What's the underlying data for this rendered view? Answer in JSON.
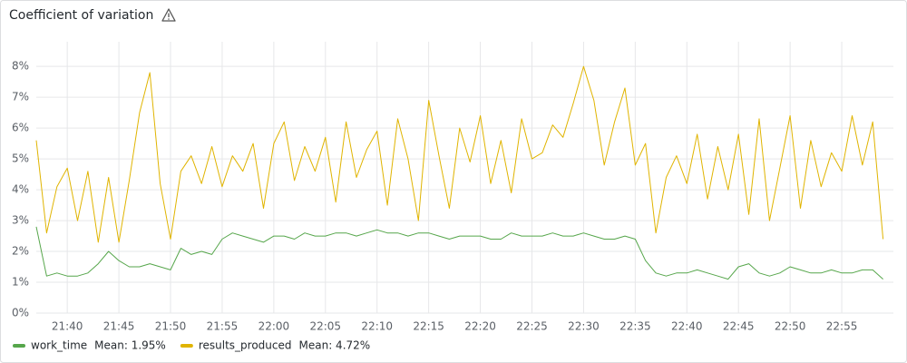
{
  "chart_data": {
    "type": "line",
    "title": "Coefficient of variation",
    "x": [
      "21:37",
      "21:38",
      "21:39",
      "21:40",
      "21:41",
      "21:42",
      "21:43",
      "21:44",
      "21:45",
      "21:46",
      "21:47",
      "21:48",
      "21:49",
      "21:50",
      "21:51",
      "21:52",
      "21:53",
      "21:54",
      "21:55",
      "21:56",
      "21:57",
      "21:58",
      "21:59",
      "22:00",
      "22:01",
      "22:02",
      "22:03",
      "22:04",
      "22:05",
      "22:06",
      "22:07",
      "22:08",
      "22:09",
      "22:10",
      "22:11",
      "22:12",
      "22:13",
      "22:14",
      "22:15",
      "22:16",
      "22:17",
      "22:18",
      "22:19",
      "22:20",
      "22:21",
      "22:22",
      "22:23",
      "22:24",
      "22:25",
      "22:26",
      "22:27",
      "22:28",
      "22:29",
      "22:30",
      "22:31",
      "22:32",
      "22:33",
      "22:34",
      "22:35",
      "22:36",
      "22:37",
      "22:38",
      "22:39",
      "22:40",
      "22:41",
      "22:42",
      "22:43",
      "22:44",
      "22:45",
      "22:46",
      "22:47",
      "22:48",
      "22:49",
      "22:50",
      "22:51",
      "22:52",
      "22:53",
      "22:54",
      "22:55",
      "22:56",
      "22:57",
      "22:58",
      "22:59"
    ],
    "series": [
      {
        "name": "work_time",
        "color": "#56a64b",
        "mean": {
          "value": 1.95,
          "label": "Mean: 1.95%"
        },
        "values": [
          2.8,
          1.2,
          1.3,
          1.2,
          1.2,
          1.3,
          1.6,
          2.0,
          1.7,
          1.5,
          1.5,
          1.6,
          1.5,
          1.4,
          2.1,
          1.9,
          2.0,
          1.9,
          2.4,
          2.6,
          2.5,
          2.4,
          2.3,
          2.5,
          2.5,
          2.4,
          2.6,
          2.5,
          2.5,
          2.6,
          2.6,
          2.5,
          2.6,
          2.7,
          2.6,
          2.6,
          2.5,
          2.6,
          2.6,
          2.5,
          2.4,
          2.5,
          2.5,
          2.5,
          2.4,
          2.4,
          2.6,
          2.5,
          2.5,
          2.5,
          2.6,
          2.5,
          2.5,
          2.6,
          2.5,
          2.4,
          2.4,
          2.5,
          2.4,
          1.7,
          1.3,
          1.2,
          1.3,
          1.3,
          1.4,
          1.3,
          1.2,
          1.1,
          1.5,
          1.6,
          1.3,
          1.2,
          1.3,
          1.5,
          1.4,
          1.3,
          1.3,
          1.4,
          1.3,
          1.3,
          1.4,
          1.4,
          1.1
        ]
      },
      {
        "name": "results_produced",
        "color": "#e0b400",
        "mean": {
          "value": 4.72,
          "label": "Mean: 4.72%"
        },
        "values": [
          5.6,
          2.6,
          4.1,
          4.7,
          3.0,
          4.6,
          2.3,
          4.4,
          2.3,
          4.3,
          6.5,
          7.8,
          4.2,
          2.4,
          4.6,
          5.1,
          4.2,
          5.4,
          4.1,
          5.1,
          4.6,
          5.5,
          3.4,
          5.5,
          6.2,
          4.3,
          5.4,
          4.6,
          5.7,
          3.6,
          6.2,
          4.4,
          5.3,
          5.9,
          3.5,
          6.3,
          5.0,
          3.0,
          6.9,
          5.1,
          3.4,
          6.0,
          4.9,
          6.4,
          4.2,
          5.6,
          3.9,
          6.3,
          5.0,
          5.2,
          6.1,
          5.7,
          6.8,
          8.0,
          6.9,
          4.8,
          6.2,
          7.3,
          4.8,
          5.5,
          2.6,
          4.4,
          5.1,
          4.2,
          5.8,
          3.7,
          5.4,
          4.0,
          5.8,
          3.2,
          6.3,
          3.0,
          4.7,
          6.4,
          3.4,
          5.6,
          4.1,
          5.2,
          4.6,
          6.4,
          4.8,
          6.2,
          2.4
        ]
      }
    ],
    "xlim": [
      "21:37",
      "23:00"
    ],
    "xticks": [
      "21:40",
      "21:45",
      "21:50",
      "21:55",
      "22:00",
      "22:05",
      "22:10",
      "22:15",
      "22:20",
      "22:25",
      "22:30",
      "22:35",
      "22:40",
      "22:45",
      "22:50",
      "22:55"
    ],
    "ylim": [
      0,
      8.8
    ],
    "yticks": [
      {
        "value": 0,
        "label": "0%"
      },
      {
        "value": 1,
        "label": "1%"
      },
      {
        "value": 2,
        "label": "2%"
      },
      {
        "value": 3,
        "label": "3%"
      },
      {
        "value": 4,
        "label": "4%"
      },
      {
        "value": 5,
        "label": "5%"
      },
      {
        "value": 6,
        "label": "6%"
      },
      {
        "value": 7,
        "label": "7%"
      },
      {
        "value": 8,
        "label": "8%"
      }
    ],
    "grid": true
  }
}
